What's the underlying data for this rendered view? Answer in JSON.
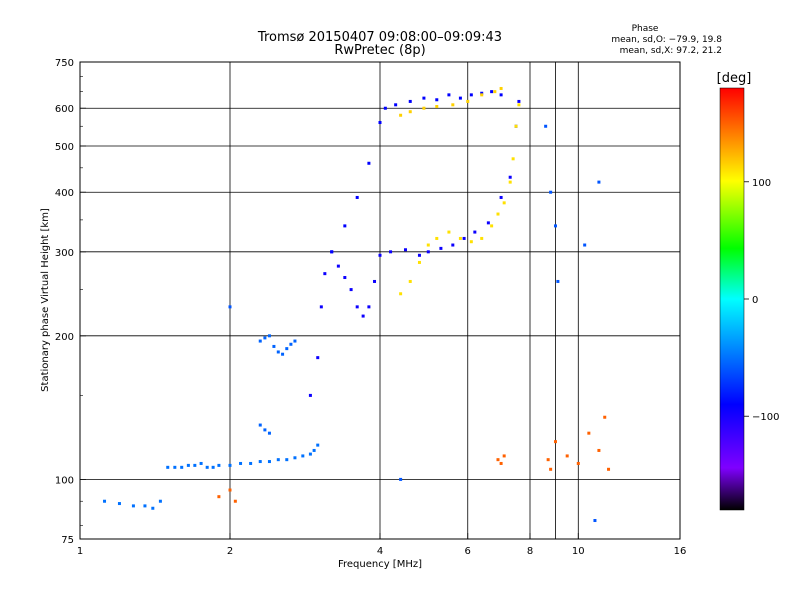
{
  "chart_data": {
    "type": "scatter",
    "title": "Tromsø 20150407 09:08:00–09:09:43",
    "subtitle": "RwPretec (8p)",
    "xlabel": "Frequency [MHz]",
    "ylabel": "Stationary phase Virtual Height [km]",
    "x_scale": "log",
    "y_scale": "log",
    "xlim": [
      1,
      16
    ],
    "ylim": [
      75,
      750
    ],
    "x_ticks": [
      1,
      2,
      4,
      6,
      8,
      10,
      16
    ],
    "x_tick_labels": [
      "1",
      "2",
      "4",
      "6",
      "8",
      "10",
      "16"
    ],
    "x_minor_ticks": [
      9
    ],
    "y_ticks": [
      75,
      100,
      200,
      300,
      400,
      500,
      600,
      750
    ],
    "y_tick_labels": [
      "75",
      "100",
      "200",
      "300",
      "400",
      "500",
      "600",
      "750"
    ],
    "grid": true,
    "phase_box": {
      "title": "Phase",
      "line1": "mean, sd,O: −79.9, 19.8",
      "line2": "mean, sd,X:  97.2, 21.2"
    },
    "colorbar": {
      "label": "[deg]",
      "range": [
        -180,
        180
      ],
      "ticks": [
        100,
        0,
        -100
      ],
      "tick_labels": [
        "100",
        "0",
        "−100"
      ],
      "colormap": [
        "#000000",
        "#7f00ff",
        "#0000ff",
        "#00ffff",
        "#00ff00",
        "#ffff00",
        "#ff0000"
      ]
    },
    "series": [
      {
        "role": "low-frequency cyan trace",
        "phase": -50,
        "x": [
          1.12,
          1.2,
          1.28,
          1.35,
          1.4,
          1.45,
          1.5,
          1.55,
          1.6,
          1.65,
          1.7,
          1.75,
          1.8,
          1.85,
          1.9,
          2.0,
          2.1,
          2.2,
          2.3,
          2.4,
          2.5,
          2.6,
          2.7,
          2.8,
          2.9,
          2.95,
          3.0
        ],
        "y": [
          90,
          89,
          88,
          88,
          87,
          90,
          106,
          106,
          106,
          107,
          107,
          108,
          106,
          106,
          107,
          107,
          108,
          108,
          109,
          109,
          110,
          110,
          111,
          112,
          113,
          115,
          118
        ]
      },
      {
        "role": "cyan trace 2.3–2.7 MHz",
        "phase": -55,
        "x": [
          2.3,
          2.35,
          2.4,
          2.45,
          2.5,
          2.55,
          2.6,
          2.65,
          2.7,
          2.3,
          2.35,
          2.4
        ],
        "y": [
          195,
          198,
          200,
          190,
          185,
          183,
          188,
          192,
          195,
          130,
          127,
          125
        ]
      },
      {
        "role": "O-mode (blue)",
        "phase": -95,
        "x": [
          2.9,
          3.0,
          3.05,
          3.1,
          3.2,
          3.3,
          3.4,
          3.5,
          3.6,
          3.7,
          3.8,
          3.9,
          4.0,
          4.2,
          4.5,
          4.8,
          5.0,
          5.3,
          5.6,
          5.9,
          6.2,
          6.6,
          7.0,
          7.3,
          7.5,
          7.6
        ],
        "y": [
          150,
          180,
          230,
          270,
          300,
          280,
          265,
          250,
          230,
          220,
          230,
          260,
          295,
          300,
          303,
          295,
          300,
          305,
          310,
          320,
          330,
          345,
          390,
          430,
          550,
          620
        ]
      },
      {
        "role": "O-mode upper branch (blue)",
        "phase": -90,
        "x": [
          3.2,
          3.4,
          3.6,
          3.8,
          4.0,
          4.1,
          4.3,
          4.6,
          4.9,
          5.2,
          5.5,
          5.8,
          6.1,
          6.4,
          6.7,
          7.0
        ],
        "y": [
          300,
          340,
          390,
          460,
          560,
          600,
          610,
          620,
          630,
          625,
          640,
          630,
          640,
          645,
          650,
          640
        ]
      },
      {
        "role": "X-mode (yellow/orange)",
        "phase": 110,
        "x": [
          4.4,
          4.6,
          4.8,
          5.0,
          5.2,
          5.5,
          5.8,
          6.1,
          6.4,
          6.7,
          6.9,
          7.1,
          7.3,
          7.4,
          7.5,
          7.6
        ],
        "y": [
          245,
          260,
          285,
          310,
          320,
          330,
          320,
          315,
          320,
          340,
          360,
          380,
          420,
          470,
          550,
          610
        ]
      },
      {
        "role": "X-mode upper branch (yellow)",
        "phase": 115,
        "x": [
          4.4,
          4.6,
          4.9,
          5.2,
          5.6,
          6.0,
          6.4,
          6.8,
          7.0
        ],
        "y": [
          580,
          590,
          600,
          605,
          610,
          620,
          640,
          650,
          660
        ]
      },
      {
        "role": "scattered points",
        "phase": 150,
        "x": [
          1.9,
          2.0,
          2.05,
          6.9,
          7.0,
          7.1,
          8.7,
          8.8,
          9.0,
          9.5,
          10.0,
          10.5,
          11.0,
          11.3,
          11.5
        ],
        "y": [
          92,
          95,
          90,
          110,
          108,
          112,
          110,
          105,
          120,
          112,
          108,
          125,
          115,
          135,
          105
        ]
      },
      {
        "role": "scattered points (cool)",
        "phase": -60,
        "x": [
          8.6,
          8.8,
          9.0,
          9.1,
          10.3,
          10.8,
          11.0,
          4.4,
          2.0
        ],
        "y": [
          550,
          400,
          340,
          260,
          310,
          82,
          420,
          100,
          230
        ]
      }
    ]
  }
}
